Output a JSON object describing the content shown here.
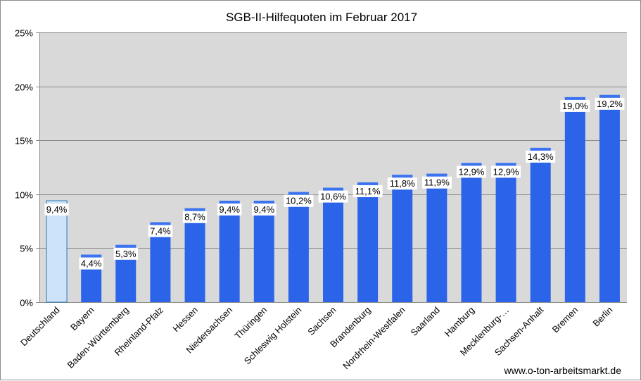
{
  "chart_data": {
    "type": "bar",
    "title": "SGB-II-Hilfequoten im Februar 2017",
    "categories": [
      "Deutschland",
      "Bayern",
      "Baden-Württemberg",
      "Rheinland-Pfalz",
      "Hessen",
      "Niedersachsen",
      "Thüringen",
      "Schleswig Holstein",
      "Sachsen",
      "Brandenburg",
      "Nordrhein-Westfalen",
      "Saarland",
      "Hamburg",
      "Mecklenburg-…",
      "Sachsen-Anhalt",
      "Bremen",
      "Berlin"
    ],
    "values": [
      9.4,
      4.4,
      5.3,
      7.4,
      8.7,
      9.4,
      9.4,
      10.2,
      10.6,
      11.1,
      11.8,
      11.9,
      12.9,
      12.9,
      14.3,
      19.0,
      19.2
    ],
    "data_labels": [
      "9,4%",
      "4,4%",
      "5,3%",
      "7,4%",
      "8,7%",
      "9,4%",
      "9,4%",
      "10,2%",
      "10,6%",
      "11,1%",
      "11,8%",
      "11,9%",
      "12,9%",
      "12,9%",
      "14,3%",
      "19,0%",
      "19,2%"
    ],
    "ylim": [
      0,
      25
    ],
    "yticks": [
      0,
      5,
      10,
      15,
      20,
      25
    ],
    "ytick_labels": [
      "0%",
      "5%",
      "10%",
      "15%",
      "20%",
      "25%"
    ],
    "xlabel": "",
    "ylabel": "",
    "grid": true,
    "highlight_index": 0,
    "colors": {
      "bar": "#2b63e9",
      "bar_top": "#3c74f0",
      "highlight_fill": "#cde3f9",
      "highlight_stroke": "#2a78b5",
      "plot_bg": "#d9d9d9",
      "grid": "#8c8c8c",
      "label_bg": "#ffffff"
    }
  },
  "source_text": "www.o-ton-arbeitsmarkt.de"
}
